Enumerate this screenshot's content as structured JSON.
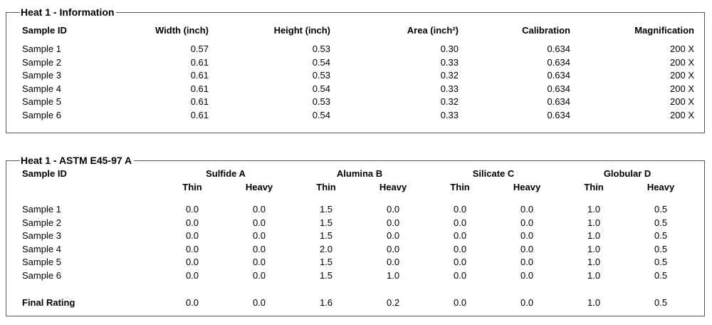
{
  "colors": {
    "border": "#595959",
    "text": "#000000",
    "background": "#ffffff"
  },
  "panels": [
    {
      "legend": "Heat 1 - Information",
      "columns": [
        "Sample ID",
        "Width (inch)",
        "Height (inch)",
        "Area (inch²)",
        "Calibration",
        "Magnification"
      ],
      "rows": [
        [
          "Sample 1",
          "0.57",
          "0.53",
          "0.30",
          "0.634",
          "200 X"
        ],
        [
          "Sample 2",
          "0.61",
          "0.54",
          "0.33",
          "0.634",
          "200 X"
        ],
        [
          "Sample 3",
          "0.61",
          "0.53",
          "0.32",
          "0.634",
          "200 X"
        ],
        [
          "Sample 4",
          "0.61",
          "0.54",
          "0.33",
          "0.634",
          "200 X"
        ],
        [
          "Sample 5",
          "0.61",
          "0.53",
          "0.32",
          "0.634",
          "200 X"
        ],
        [
          "Sample 6",
          "0.61",
          "0.54",
          "0.33",
          "0.634",
          "200 X"
        ]
      ]
    },
    {
      "legend": "Heat 1 - ASTM E45-97 A",
      "id_column": "Sample ID",
      "groups": [
        {
          "label": "Sulfide A",
          "sub": [
            "Thin",
            "Heavy"
          ]
        },
        {
          "label": "Alumina B",
          "sub": [
            "Thin",
            "Heavy"
          ]
        },
        {
          "label": "Silicate C",
          "sub": [
            "Thin",
            "Heavy"
          ]
        },
        {
          "label": "Globular D",
          "sub": [
            "Thin",
            "Heavy"
          ]
        }
      ],
      "rows": [
        [
          "Sample 1",
          "0.0",
          "0.0",
          "1.5",
          "0.0",
          "0.0",
          "0.0",
          "1.0",
          "0.5"
        ],
        [
          "Sample 2",
          "0.0",
          "0.0",
          "1.5",
          "0.0",
          "0.0",
          "0.0",
          "1.0",
          "0.5"
        ],
        [
          "Sample 3",
          "0.0",
          "0.0",
          "1.5",
          "0.0",
          "0.0",
          "0.0",
          "1.0",
          "0.5"
        ],
        [
          "Sample 4",
          "0.0",
          "0.0",
          "2.0",
          "0.0",
          "0.0",
          "0.0",
          "1.0",
          "0.5"
        ],
        [
          "Sample 5",
          "0.0",
          "0.0",
          "1.5",
          "0.0",
          "0.0",
          "0.0",
          "1.0",
          "0.5"
        ],
        [
          "Sample 6",
          "0.0",
          "0.0",
          "1.5",
          "1.0",
          "0.0",
          "0.0",
          "1.0",
          "0.5"
        ]
      ],
      "final_rating": {
        "label": "Final Rating",
        "values": [
          "0.0",
          "0.0",
          "1.6",
          "0.2",
          "0.0",
          "0.0",
          "1.0",
          "0.5"
        ]
      }
    }
  ]
}
